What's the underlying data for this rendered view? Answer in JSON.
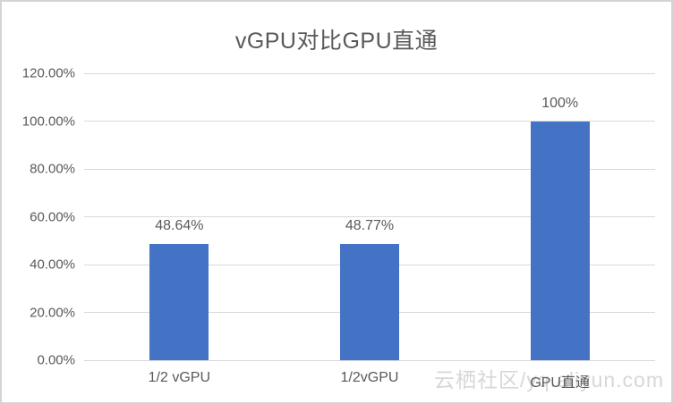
{
  "chart_data": {
    "type": "bar",
    "title": "vGPU对比GPU直通",
    "categories": [
      "1/2 vGPU",
      "1/2vGPU",
      "GPU直通"
    ],
    "values": [
      48.64,
      48.77,
      100
    ],
    "data_labels": [
      "48.64%",
      "48.77%",
      "100%"
    ],
    "xlabel": "",
    "ylabel": "",
    "ylim": [
      0,
      120
    ],
    "y_tick_values": [
      0,
      20,
      40,
      60,
      80,
      100,
      120
    ],
    "y_tick_labels": [
      "0.00%",
      "20.00%",
      "40.00%",
      "60.00%",
      "80.00%",
      "100.00%",
      "120.00%"
    ],
    "grid": true,
    "legend": false,
    "bar_color": "#4472C4"
  },
  "watermark": {
    "text": "云栖社区/yq.aliyun.com"
  },
  "colors": {
    "bar": "#4472C4",
    "gridline": "#d9d9d9",
    "text": "#595959",
    "frame_border": "#d4d4d4",
    "watermark": "#d7d7d7",
    "background": "#ffffff"
  }
}
